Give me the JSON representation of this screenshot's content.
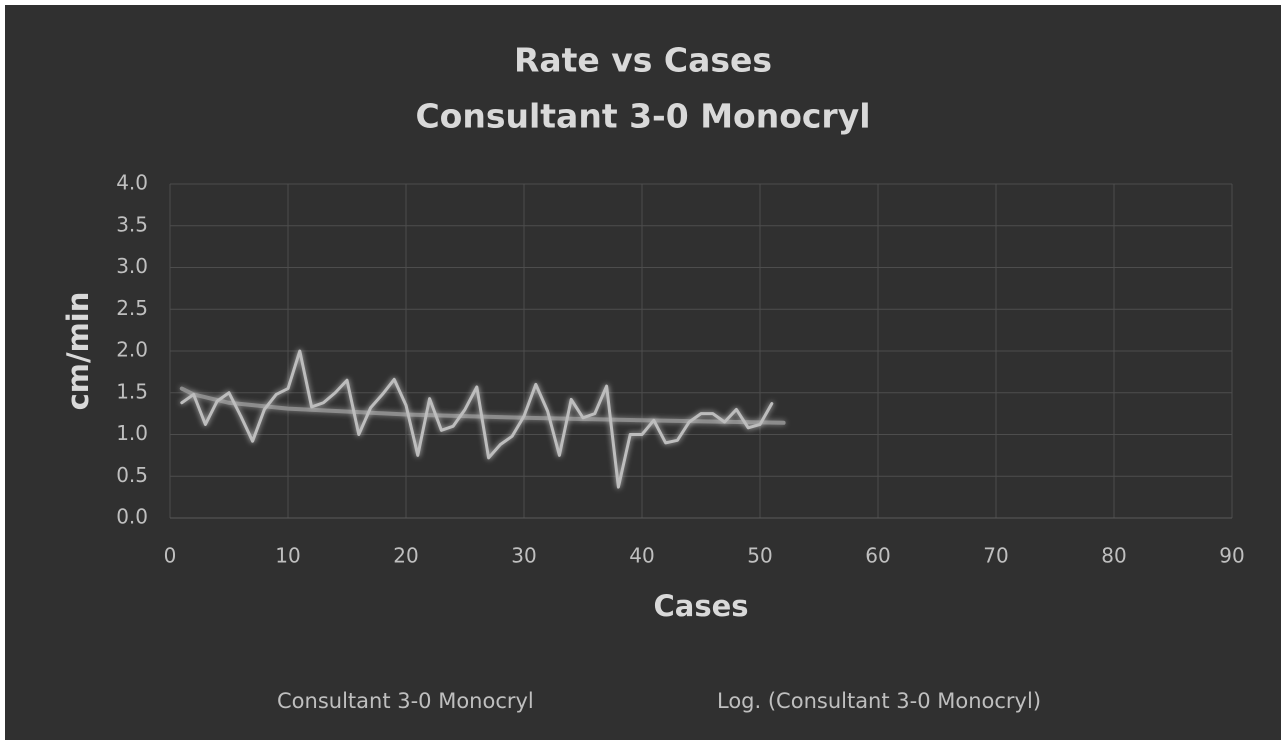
{
  "chart_data": {
    "type": "line",
    "title": "Rate vs Cases",
    "subtitle": "Consultant 3-0 Monocryl",
    "xlabel": "Cases",
    "ylabel": "cm/min",
    "xlim": [
      0,
      90
    ],
    "xticks": [
      0,
      10,
      20,
      30,
      40,
      50,
      60,
      70,
      80,
      90
    ],
    "ylim": [
      0,
      4
    ],
    "yticks": [
      {
        "value": 0,
        "label": "0.0"
      },
      0.5,
      {
        "value": 1,
        "label": "1.0"
      },
      1.5,
      {
        "value": 2,
        "label": "2.0"
      },
      2.5,
      {
        "value": 3,
        "label": "3.0"
      },
      3.5,
      {
        "value": 4,
        "label": "4.0"
      }
    ],
    "grid": true,
    "legend": "bottom",
    "series": [
      {
        "name": "Consultant 3-0 Monocryl",
        "color": "#bdbdbd",
        "x": [
          1,
          2,
          3,
          4,
          5,
          6,
          7,
          8,
          9,
          10,
          11,
          12,
          13,
          14,
          15,
          16,
          17,
          18,
          19,
          20,
          21,
          22,
          23,
          24,
          25,
          26,
          27,
          28,
          29,
          30,
          31,
          32,
          33,
          34,
          35,
          36,
          37,
          38,
          39,
          40,
          41,
          42,
          43,
          44,
          45,
          46,
          47,
          48,
          49,
          50,
          51
        ],
        "values": [
          1.38,
          1.48,
          1.12,
          1.4,
          1.5,
          1.22,
          0.92,
          1.3,
          1.48,
          1.55,
          2.0,
          1.33,
          1.38,
          1.5,
          1.65,
          1.0,
          1.32,
          1.48,
          1.66,
          1.35,
          0.75,
          1.43,
          1.05,
          1.1,
          1.3,
          1.57,
          0.72,
          0.88,
          0.98,
          1.22,
          1.6,
          1.28,
          0.75,
          1.42,
          1.2,
          1.25,
          1.58,
          0.37,
          1.0,
          1.0,
          1.17,
          0.9,
          0.93,
          1.15,
          1.25,
          1.25,
          1.15,
          1.3,
          1.08,
          1.12,
          1.37
        ]
      },
      {
        "name": "Log. (Consultant 3-0 Monocryl)",
        "color": "#8c8c8c",
        "x": [
          1,
          2,
          5,
          10,
          20,
          30,
          40,
          52
        ],
        "values": [
          1.55,
          1.48,
          1.38,
          1.31,
          1.24,
          1.2,
          1.17,
          1.14
        ]
      }
    ]
  }
}
